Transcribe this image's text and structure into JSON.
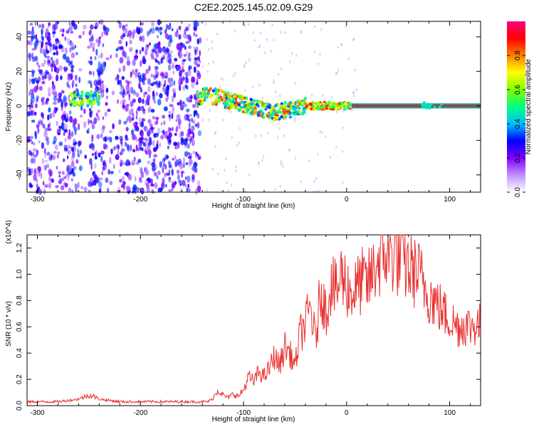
{
  "title": "C2E2.2025.145.02.09.G29",
  "colors": {
    "snr_line": "#e8302e",
    "tone_center": "#ff0080",
    "tone_edge": "#00aa55",
    "background": "#ffffff",
    "axis": "#000000"
  },
  "chart_data": [
    {
      "type": "heatmap",
      "title": "C2E2.2025.145.02.09.G29",
      "xlabel": "Height of straight line (km)",
      "ylabel": "Frequency (Hz)",
      "xlim": [
        -310,
        130
      ],
      "ylim": [
        -50,
        49
      ],
      "xticks": [
        -300,
        -200,
        -100,
        0,
        100
      ],
      "yticks": [
        -40,
        -20,
        0,
        20,
        40
      ],
      "colorbar": {
        "label": "Normalized spectral amplitude",
        "range": [
          0,
          1
        ],
        "ticks": [
          "0.0",
          "0.2",
          "0.4",
          "0.6",
          "0.8"
        ],
        "colormap": [
          "#ffffff",
          "#c090ff",
          "#8000ff",
          "#0000ff",
          "#00c0ff",
          "#00ff80",
          "#80ff00",
          "#ffff00",
          "#ff8000",
          "#ff0000",
          "#ff0080"
        ]
      },
      "features": {
        "noise_region_km": [
          -310,
          -142
        ],
        "track_start_km": -140,
        "steady_tone_km": [
          5,
          130
        ],
        "steady_tone_freq_hz": 0
      }
    },
    {
      "type": "line",
      "xlabel": "Height of straight line (km)",
      "ylabel": "SNR (10 * v/v)",
      "y_multiplier": "(x10^4)",
      "xlim": [
        -310,
        130
      ],
      "ylim": [
        0,
        1.3
      ],
      "xticks": [
        -300,
        -200,
        -100,
        0,
        100
      ],
      "yticks": [
        "0.0",
        "0.2",
        "0.4",
        "0.6",
        "0.8",
        "1.0",
        "1.2"
      ],
      "ytick_values": [
        0,
        0.2,
        0.4,
        0.6,
        0.8,
        1.0,
        1.2
      ],
      "series": [
        {
          "x": [
            -310,
            -300,
            -290,
            -280,
            -270,
            -260,
            -250,
            -245,
            -240,
            -230,
            -220,
            -210,
            -200,
            -190,
            -180,
            -170,
            -160,
            -150,
            -140,
            -135,
            -130,
            -125,
            -120,
            -115,
            -110,
            -105,
            -100,
            -95,
            -90,
            -85,
            -80,
            -75,
            -70,
            -65,
            -60,
            -55,
            -50,
            -45,
            -40,
            -35,
            -30,
            -25,
            -20,
            -15,
            -10,
            -5,
            0,
            5,
            10,
            15,
            20,
            25,
            30,
            35,
            40,
            45,
            50,
            55,
            60,
            65,
            70,
            75,
            80,
            85,
            90,
            95,
            100,
            105,
            110,
            115,
            120,
            125,
            130
          ],
          "y": [
            0.03,
            0.03,
            0.03,
            0.03,
            0.04,
            0.05,
            0.08,
            0.07,
            0.05,
            0.04,
            0.03,
            0.03,
            0.03,
            0.03,
            0.03,
            0.03,
            0.03,
            0.03,
            0.03,
            0.03,
            0.05,
            0.12,
            0.08,
            0.06,
            0.09,
            0.07,
            0.12,
            0.22,
            0.18,
            0.26,
            0.22,
            0.28,
            0.38,
            0.3,
            0.45,
            0.4,
            0.3,
            0.55,
            0.62,
            0.75,
            0.48,
            0.9,
            0.7,
            0.95,
            0.85,
            1.0,
            0.92,
            0.85,
            0.9,
            0.95,
            0.92,
            1.0,
            1.1,
            1.12,
            1.18,
            1.15,
            1.12,
            1.1,
            1.05,
            1.02,
            1.0,
            0.92,
            0.85,
            0.8,
            0.75,
            0.7,
            0.66,
            0.62,
            0.6,
            0.62,
            0.6,
            0.62,
            0.62
          ]
        }
      ]
    }
  ]
}
